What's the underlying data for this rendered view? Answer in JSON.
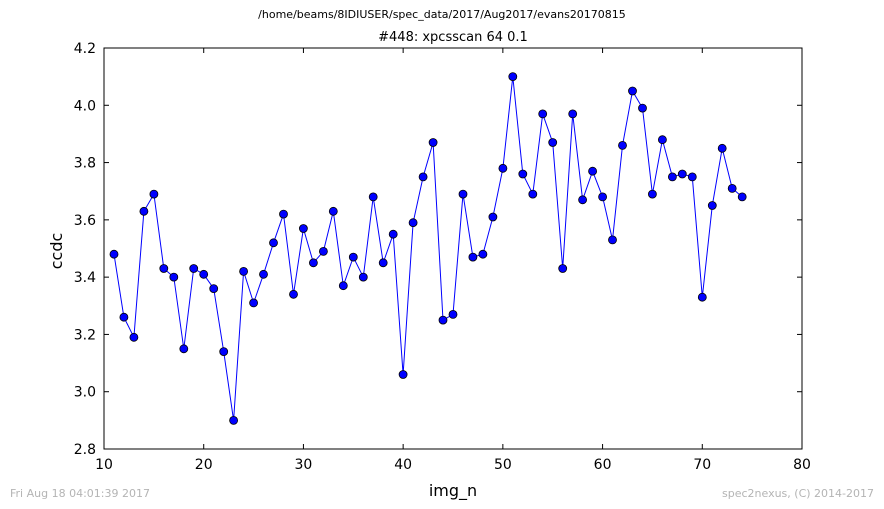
{
  "header": {
    "path": "/home/beams/8IDIUSER/spec_data/2017/Aug2017/evans20170815"
  },
  "footer": {
    "timestamp": "Fri Aug 18 04:01:39 2017",
    "credit": "spec2nexus, (C) 2014-2017"
  },
  "chart_data": {
    "type": "line",
    "title": "#448: xpcsscan 64 0.1",
    "xlabel": "img_n",
    "ylabel": "ccdc",
    "xlim": [
      10,
      80
    ],
    "ylim": [
      2.8,
      4.2
    ],
    "xticks": [
      10,
      20,
      30,
      40,
      50,
      60,
      70,
      80
    ],
    "yticks": [
      2.8,
      3.0,
      3.2,
      3.4,
      3.6,
      3.8,
      4.0,
      4.2
    ],
    "grid": false,
    "line_color": "#0000ff",
    "marker_color": "#0000ff",
    "x": [
      11,
      12,
      13,
      14,
      15,
      16,
      17,
      18,
      19,
      20,
      21,
      22,
      23,
      24,
      25,
      26,
      27,
      28,
      29,
      30,
      31,
      32,
      33,
      34,
      35,
      36,
      37,
      38,
      39,
      40,
      41,
      42,
      43,
      44,
      45,
      46,
      47,
      48,
      49,
      50,
      51,
      52,
      53,
      54,
      55,
      56,
      57,
      58,
      59,
      60,
      61,
      62,
      63,
      64,
      65,
      66,
      67,
      68,
      69,
      70,
      71,
      72,
      73,
      74
    ],
    "y": [
      3.48,
      3.26,
      3.19,
      3.63,
      3.69,
      3.43,
      3.4,
      3.15,
      3.43,
      3.41,
      3.36,
      3.14,
      2.9,
      3.42,
      3.31,
      3.41,
      3.52,
      3.62,
      3.34,
      3.57,
      3.45,
      3.49,
      3.63,
      3.37,
      3.47,
      3.4,
      3.68,
      3.45,
      3.55,
      3.06,
      3.59,
      3.75,
      3.87,
      3.25,
      3.27,
      3.69,
      3.47,
      3.48,
      3.61,
      3.78,
      4.1,
      3.76,
      3.69,
      3.97,
      3.87,
      3.43,
      3.97,
      3.67,
      3.77,
      3.68,
      3.53,
      3.86,
      4.05,
      3.99,
      3.69,
      3.88,
      3.75,
      3.76,
      3.75,
      3.33,
      3.65,
      3.85,
      3.71,
      3.68
    ]
  }
}
